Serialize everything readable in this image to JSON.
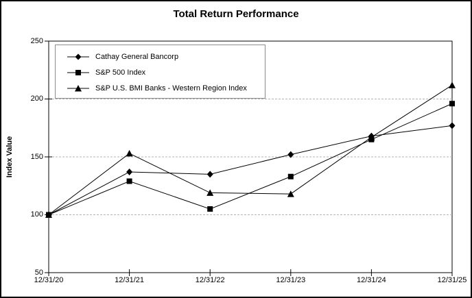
{
  "chart_data": {
    "type": "line",
    "title": "Total Return Performance",
    "xlabel": "",
    "ylabel": "Index Value",
    "x_labels": [
      "12/31/20",
      "12/31/21",
      "12/31/22",
      "12/31/23",
      "12/31/24",
      "12/31/25"
    ],
    "y_ticks": [
      "250",
      "200",
      "150",
      "100",
      "50"
    ],
    "ylim": [
      50,
      250
    ],
    "grid": "horizontal dashed gridlines at 100, 150, 200",
    "legend_position": "inside top-left, bordered box",
    "line_color": "#000000",
    "grid_color": "#b3b3b3",
    "axis_color": "#000000",
    "series": [
      {
        "name": "Cathay General Bancorp",
        "marker": "diamond",
        "color": "#000000",
        "values": [
          100,
          137,
          135,
          152,
          168,
          177
        ]
      },
      {
        "name": "S&P 500 Index",
        "marker": "square",
        "color": "#000000",
        "values": [
          100,
          129,
          105,
          133,
          165,
          196
        ]
      },
      {
        "name": "S&P U.S. BMI Banks - Western Region Index",
        "marker": "triangle",
        "color": "#000000",
        "values": [
          100,
          153,
          119,
          118,
          167,
          212
        ]
      }
    ]
  }
}
